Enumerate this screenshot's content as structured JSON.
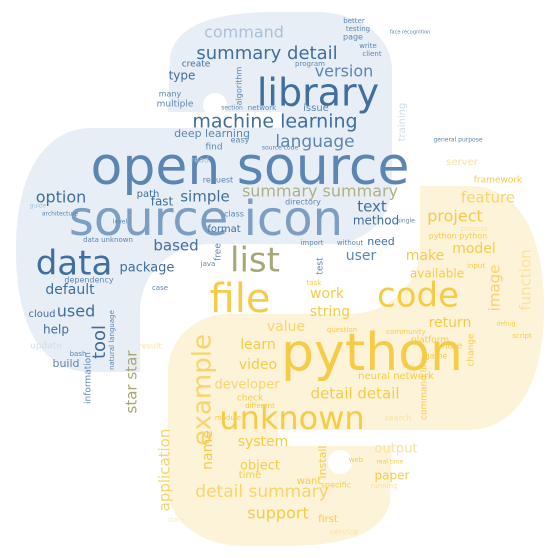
{
  "colors": {
    "blue_shape": "#e8eef5",
    "yellow_shape": "#fdf3d9",
    "blue_strong": "#3f6e9f",
    "blue_mid": "#5b86b3",
    "blue_light": "#a9c0da",
    "blue_faint": "#cfdcea",
    "olive": "#a7a778",
    "yellow_strong": "#f6cc46",
    "yellow_mid": "#f7d56a",
    "yellow_light": "#f8e3a0",
    "yellow_faint": "#f9eccb"
  },
  "words": {
    "open_source": "open source",
    "source_icon": "source icon",
    "python": "python",
    "library": "library",
    "file": "file",
    "data": "data",
    "code": "code",
    "list": "list",
    "unknown": "unknown",
    "example": "example",
    "machine_learning": "machine learning",
    "summary_detail_top": "summary detail",
    "detail_summary": "detail summary",
    "summary_summary": "summary summary",
    "detail_detail": "detail detail",
    "star_star": "star star",
    "language": "language",
    "command": "command",
    "version": "version",
    "option": "option",
    "simple": "simple",
    "based": "based",
    "default": "default",
    "used": "used",
    "tool": "tool",
    "package": "package",
    "help": "help",
    "build": "build",
    "text": "text",
    "project": "project",
    "feature": "feature",
    "user": "user",
    "make": "make",
    "model": "model",
    "image": "image",
    "function": "function",
    "available": "available",
    "return": "return",
    "work": "work",
    "string": "string",
    "value": "value",
    "learn": "learn",
    "video": "video",
    "developer": "developer",
    "application": "application",
    "name": "name",
    "system": "system",
    "object": "object",
    "support": "support",
    "time": "time",
    "paper": "paper",
    "output": "output",
    "neural_network": "neural network",
    "type": "type",
    "deep_learning": "deep learning",
    "issue": "issue",
    "path": "path",
    "fast": "fast",
    "format": "format",
    "free": "free",
    "method": "method",
    "need": "need",
    "test": "test",
    "cloud": "cloud",
    "information": "information",
    "server": "server",
    "framework": "framework",
    "python_python": "python python",
    "note": "note",
    "change": "change",
    "platform": "platform",
    "game": "game",
    "command_line": "command line",
    "install": "install",
    "want": "want",
    "first": "first",
    "create": "create",
    "many": "many",
    "multiple": "multiple",
    "program": "program",
    "write": "write",
    "client": "client",
    "better": "better",
    "testing": "testing",
    "page": "page",
    "request": "request",
    "directory": "directory",
    "class": "class",
    "import": "import",
    "without": "without",
    "process": "process",
    "data_unknown": "data unknown",
    "java": "java",
    "easy": "easy",
    "find": "find",
    "read": "read",
    "algorithm": "algorithm",
    "network": "network",
    "training": "training",
    "general_purpose": "general purpose",
    "dependency": "dependency",
    "architecture": "architecture",
    "update": "update",
    "result": "result",
    "script": "script",
    "search": "search",
    "check": "check",
    "different": "different",
    "specific": "specific",
    "single": "single",
    "task": "task",
    "running": "running",
    "case": "case",
    "input": "input",
    "bash": "bash",
    "natural_language": "natural language",
    "web": "web",
    "module": "module",
    "service": "service",
    "question": "question",
    "real_time": "real time",
    "community": "community",
    "section": "section",
    "level": "level",
    "guide": "guide",
    "face_recognition": "face recognition",
    "debug": "debug",
    "state": "state",
    "source_code": "source code"
  }
}
